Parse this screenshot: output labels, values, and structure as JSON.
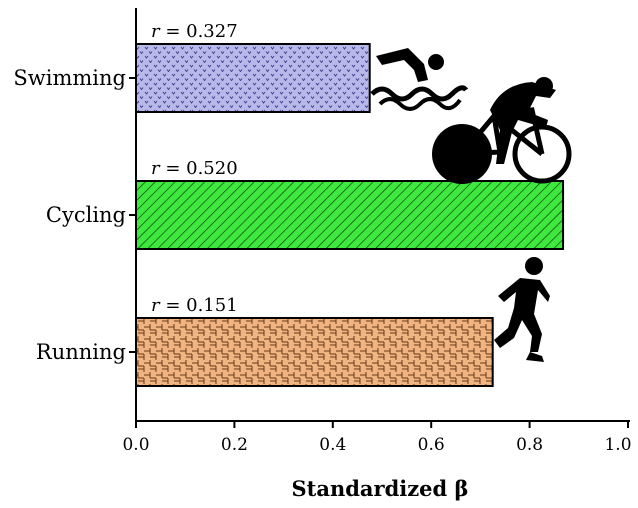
{
  "chart_data": {
    "type": "bar",
    "orientation": "horizontal",
    "categories": [
      "Swimming",
      "Cycling",
      "Running"
    ],
    "values": [
      0.475,
      0.868,
      0.725
    ],
    "annotations": [
      {
        "italic": "r",
        "text": " = 0.327"
      },
      {
        "italic": "r",
        "text": " = 0.520"
      },
      {
        "italic": "r",
        "text": " = 0.151"
      }
    ],
    "xlabel": "Standardized β",
    "xlim": [
      0.0,
      1.0
    ],
    "xticks": [
      "0.0",
      "0.2",
      "0.4",
      "0.6",
      "0.8",
      "1.0"
    ],
    "grid": false,
    "colors": {
      "Swimming": "#b8b8ea",
      "Cycling": "#3ee83e",
      "Running": "#f0b480"
    },
    "icons": [
      "swimmer-icon",
      "cyclist-icon",
      "runner-icon"
    ]
  }
}
